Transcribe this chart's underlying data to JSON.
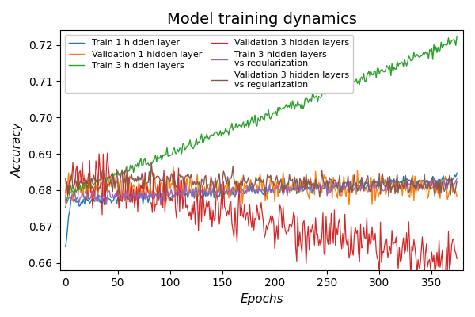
{
  "title": "Model training dynamics",
  "xlabel": "Epochs",
  "ylabel": "Accuracy",
  "n_epochs": 375,
  "ylim": [
    0.658,
    0.724
  ],
  "xlim": [
    -5,
    380
  ],
  "series": {
    "train_1hl": {
      "label": "Train 1 hidden layer",
      "color": "#1f77b4"
    },
    "val_1hl": {
      "label": "Validation 1 hidden layer",
      "color": "#ff7f0e"
    },
    "train_3hl": {
      "label": "Train 3 hidden layers",
      "color": "#2ca02c"
    },
    "val_3hl": {
      "label": "Validation 3 hidden layers",
      "color": "#d62728"
    },
    "train_3hl_reg": {
      "label": "Train 3 hidden layers\nvs regularization",
      "color": "#9467bd"
    },
    "val_3hl_reg": {
      "label": "Validation 3 hidden layers\nvs regularization",
      "color": "#8c564b"
    }
  },
  "legend_fontsize": 8,
  "title_fontsize": 14,
  "figsize": [
    6.0,
    4.0
  ],
  "dpi": 100
}
